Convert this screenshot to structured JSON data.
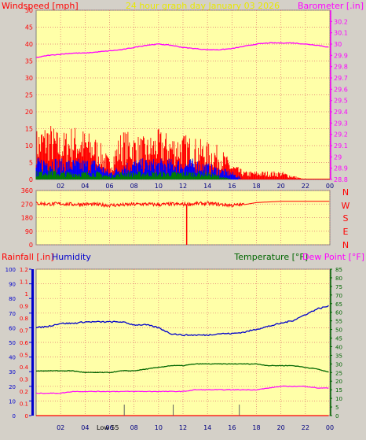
{
  "header": {
    "windspeed_label": "Windspeed [mph]",
    "graph_title": "24 hour graph day   January 03 2026",
    "barometer_label": "Barometer [.in]"
  },
  "colors": {
    "background": "#d4d0c8",
    "plot_bg": "#ffffa8",
    "grid": "#e07070",
    "wind": "#ff0000",
    "gust_blue": "#0000ff",
    "wind_green": "#008000",
    "barometer": "#ff00ff",
    "humidity": "#0000cc",
    "temperature": "#006600",
    "dew_point": "#ff00ff",
    "rain": "#ff0000",
    "title_yellow": "#e8e800"
  },
  "chart_data": [
    {
      "type": "line",
      "title": "24 hour graph day   January 03 2026",
      "x": [
        1,
        2,
        3,
        4,
        5,
        6,
        7,
        8,
        9,
        10,
        11,
        12,
        13,
        14,
        15,
        16,
        17,
        18,
        19,
        20,
        21,
        22,
        23,
        24
      ],
      "x_tick_labels": [
        "02",
        "04",
        "06",
        "08",
        "10",
        "12",
        "14",
        "16",
        "18",
        "20",
        "22",
        "00"
      ],
      "left_axis": {
        "label": "Windspeed [mph]",
        "ylim": [
          0,
          50
        ],
        "ticks": [
          "0",
          "5",
          "10",
          "15",
          "20",
          "25",
          "30",
          "35",
          "40",
          "45",
          "50"
        ]
      },
      "right_axis": {
        "label": "Barometer [.in]",
        "ylim": [
          28.8,
          30.3
        ],
        "ticks": [
          "28.8",
          "28.9",
          "29",
          "29.1",
          "29.2",
          "29.3",
          "29.4",
          "29.5",
          "29.6",
          "29.7",
          "29.8",
          "29.9",
          "30",
          "30.1",
          "30.2"
        ]
      },
      "series": [
        {
          "name": "Barometer [.in]",
          "axis": "right",
          "color": "#ff00ff",
          "x": [
            0,
            1,
            2,
            3,
            4,
            5,
            6,
            7,
            8,
            9,
            10,
            11,
            12,
            13,
            14,
            15,
            16,
            17,
            18,
            19,
            20,
            21,
            22,
            23,
            24
          ],
          "values": [
            29.88,
            29.9,
            29.91,
            29.92,
            29.92,
            29.93,
            29.94,
            29.95,
            29.97,
            29.99,
            30.0,
            29.99,
            29.97,
            29.96,
            29.95,
            29.95,
            29.96,
            29.98,
            30.0,
            30.01,
            30.01,
            30.01,
            30.0,
            29.99,
            29.97
          ]
        },
        {
          "name": "Wind gust",
          "axis": "left",
          "color": "#ff0000",
          "x": [
            0,
            1,
            2,
            3,
            4,
            5,
            6,
            7,
            8,
            9,
            10,
            11,
            12,
            13,
            14,
            15,
            16,
            17,
            18,
            19,
            20,
            21,
            22,
            23,
            24
          ],
          "values": [
            12,
            14,
            11,
            13,
            12,
            10,
            5,
            12,
            11,
            10,
            12,
            11,
            11,
            10,
            9,
            8,
            4,
            2,
            2,
            2,
            2,
            1,
            0,
            0,
            0
          ]
        },
        {
          "name": "Wind average",
          "axis": "left",
          "color": "#0000ff",
          "x": [
            0,
            1,
            2,
            3,
            4,
            5,
            6,
            7,
            8,
            9,
            10,
            11,
            12,
            13,
            14,
            15,
            16,
            17,
            18,
            19,
            20,
            21,
            22,
            23,
            24
          ],
          "values": [
            5,
            6,
            5,
            5,
            5,
            5,
            2,
            4,
            5,
            5,
            5,
            5,
            5,
            5,
            4,
            3,
            2,
            0,
            0,
            0,
            0,
            0,
            0,
            0,
            0
          ]
        },
        {
          "name": "Wind low",
          "axis": "left",
          "color": "#008000",
          "x": [
            0,
            1,
            2,
            3,
            4,
            5,
            6,
            7,
            8,
            9,
            10,
            11,
            12,
            13,
            14,
            15,
            16,
            17,
            18,
            19,
            20,
            21,
            22,
            23,
            24
          ],
          "values": [
            2,
            3,
            2,
            2,
            2,
            2,
            1,
            2,
            2,
            2,
            2,
            2,
            2,
            2,
            2,
            1,
            0,
            0,
            0,
            0,
            0,
            0,
            0,
            0,
            0
          ]
        }
      ]
    },
    {
      "type": "line",
      "title": "",
      "x": [
        1,
        2,
        3,
        4,
        5,
        6,
        7,
        8,
        9,
        10,
        11,
        12,
        13,
        14,
        15,
        16,
        17,
        18,
        19,
        20,
        21,
        22,
        23,
        24
      ],
      "left_axis": {
        "ylim": [
          0,
          360
        ],
        "ticks": [
          "0",
          "90",
          "180",
          "270",
          "360"
        ]
      },
      "right_axis": {
        "tick_labels": [
          "N",
          "W",
          "S",
          "E",
          "N"
        ]
      },
      "series": [
        {
          "name": "Wind direction",
          "axis": "left",
          "color": "#ff0000",
          "x": [
            0,
            1,
            2,
            3,
            4,
            5,
            6,
            7,
            8,
            9,
            10,
            11,
            12,
            13,
            14,
            15,
            16,
            17,
            18,
            19,
            20,
            21,
            22,
            23,
            24
          ],
          "values": [
            275,
            270,
            272,
            268,
            270,
            266,
            262,
            264,
            268,
            270,
            266,
            270,
            268,
            272,
            274,
            268,
            262,
            266,
            280,
            284,
            288,
            288,
            288,
            288,
            288
          ],
          "spike": {
            "x": 12.3,
            "value": 0
          }
        }
      ]
    },
    {
      "type": "line",
      "title": "",
      "x": [
        1,
        2,
        3,
        4,
        5,
        6,
        7,
        8,
        9,
        10,
        11,
        12,
        13,
        14,
        15,
        16,
        17,
        18,
        19,
        20,
        21,
        22,
        23,
        24
      ],
      "x_tick_labels": [
        "02",
        "04",
        "06",
        "08",
        "10",
        "12",
        "14",
        "16",
        "18",
        "20",
        "22",
        "00"
      ],
      "annotation": "Low 55",
      "axes": {
        "humidity": {
          "label": "Humidity",
          "ylim": [
            0,
            100
          ],
          "ticks": [
            "0",
            "10",
            "20",
            "30",
            "40",
            "50",
            "60",
            "70",
            "80",
            "90",
            "100"
          ]
        },
        "rainfall": {
          "label": "Rainfall [.in]",
          "ylim": [
            0,
            1.2
          ],
          "ticks": [
            "0",
            "0.1",
            "0.2",
            "0.3",
            "0.4",
            "0.5",
            "0.6",
            "0.7",
            "0.8",
            "0.9",
            "1",
            "1.1",
            "1.2"
          ]
        },
        "temperature": {
          "label": "Temperature [°F]",
          "ylim": [
            0,
            85
          ],
          "ticks": [
            "0",
            "5",
            "10",
            "15",
            "20",
            "25",
            "30",
            "35",
            "40",
            "45",
            "50",
            "55",
            "60",
            "65",
            "70",
            "75",
            "80",
            "85"
          ]
        },
        "dew_point_label": "Dew Point [°F]"
      },
      "series": [
        {
          "name": "Humidity",
          "axis": "humidity",
          "color": "#0000cc",
          "x": [
            0,
            1,
            2,
            3,
            4,
            5,
            6,
            7,
            8,
            9,
            10,
            11,
            12,
            13,
            14,
            15,
            16,
            17,
            18,
            19,
            20,
            21,
            22,
            23,
            24
          ],
          "values": [
            60,
            61,
            63,
            63,
            64,
            64,
            64,
            64,
            62,
            62,
            60,
            56,
            55,
            55,
            55,
            56,
            56,
            57,
            59,
            61,
            63,
            65,
            69,
            73,
            75
          ]
        },
        {
          "name": "Temperature [°F]",
          "axis": "temperature",
          "color": "#006600",
          "x": [
            0,
            1,
            2,
            3,
            4,
            5,
            6,
            7,
            8,
            9,
            10,
            11,
            12,
            13,
            14,
            15,
            16,
            17,
            18,
            19,
            20,
            21,
            22,
            23,
            24
          ],
          "values": [
            26,
            26,
            26,
            26,
            25,
            25,
            25,
            26,
            26,
            27,
            28,
            29,
            29,
            30,
            30,
            30,
            30,
            30,
            30,
            29,
            29,
            29,
            28,
            27,
            25
          ]
        },
        {
          "name": "Dew Point [°F]",
          "axis": "temperature",
          "color": "#ff00ff",
          "x": [
            0,
            1,
            2,
            3,
            4,
            5,
            6,
            7,
            8,
            9,
            10,
            11,
            12,
            13,
            14,
            15,
            16,
            17,
            18,
            19,
            20,
            21,
            22,
            23,
            24
          ],
          "values": [
            13,
            13,
            13,
            14,
            14,
            14,
            14,
            14,
            14,
            14,
            14,
            14,
            14,
            15,
            15,
            15,
            15,
            15,
            15,
            16,
            17,
            17,
            17,
            16,
            16
          ]
        },
        {
          "name": "Rainfall [.in]",
          "axis": "rainfall",
          "color": "#ff0000",
          "x": [
            0,
            24
          ],
          "values": [
            0,
            0
          ]
        }
      ],
      "tick_markers_x": [
        7.2,
        11.2,
        16.6
      ]
    }
  ]
}
